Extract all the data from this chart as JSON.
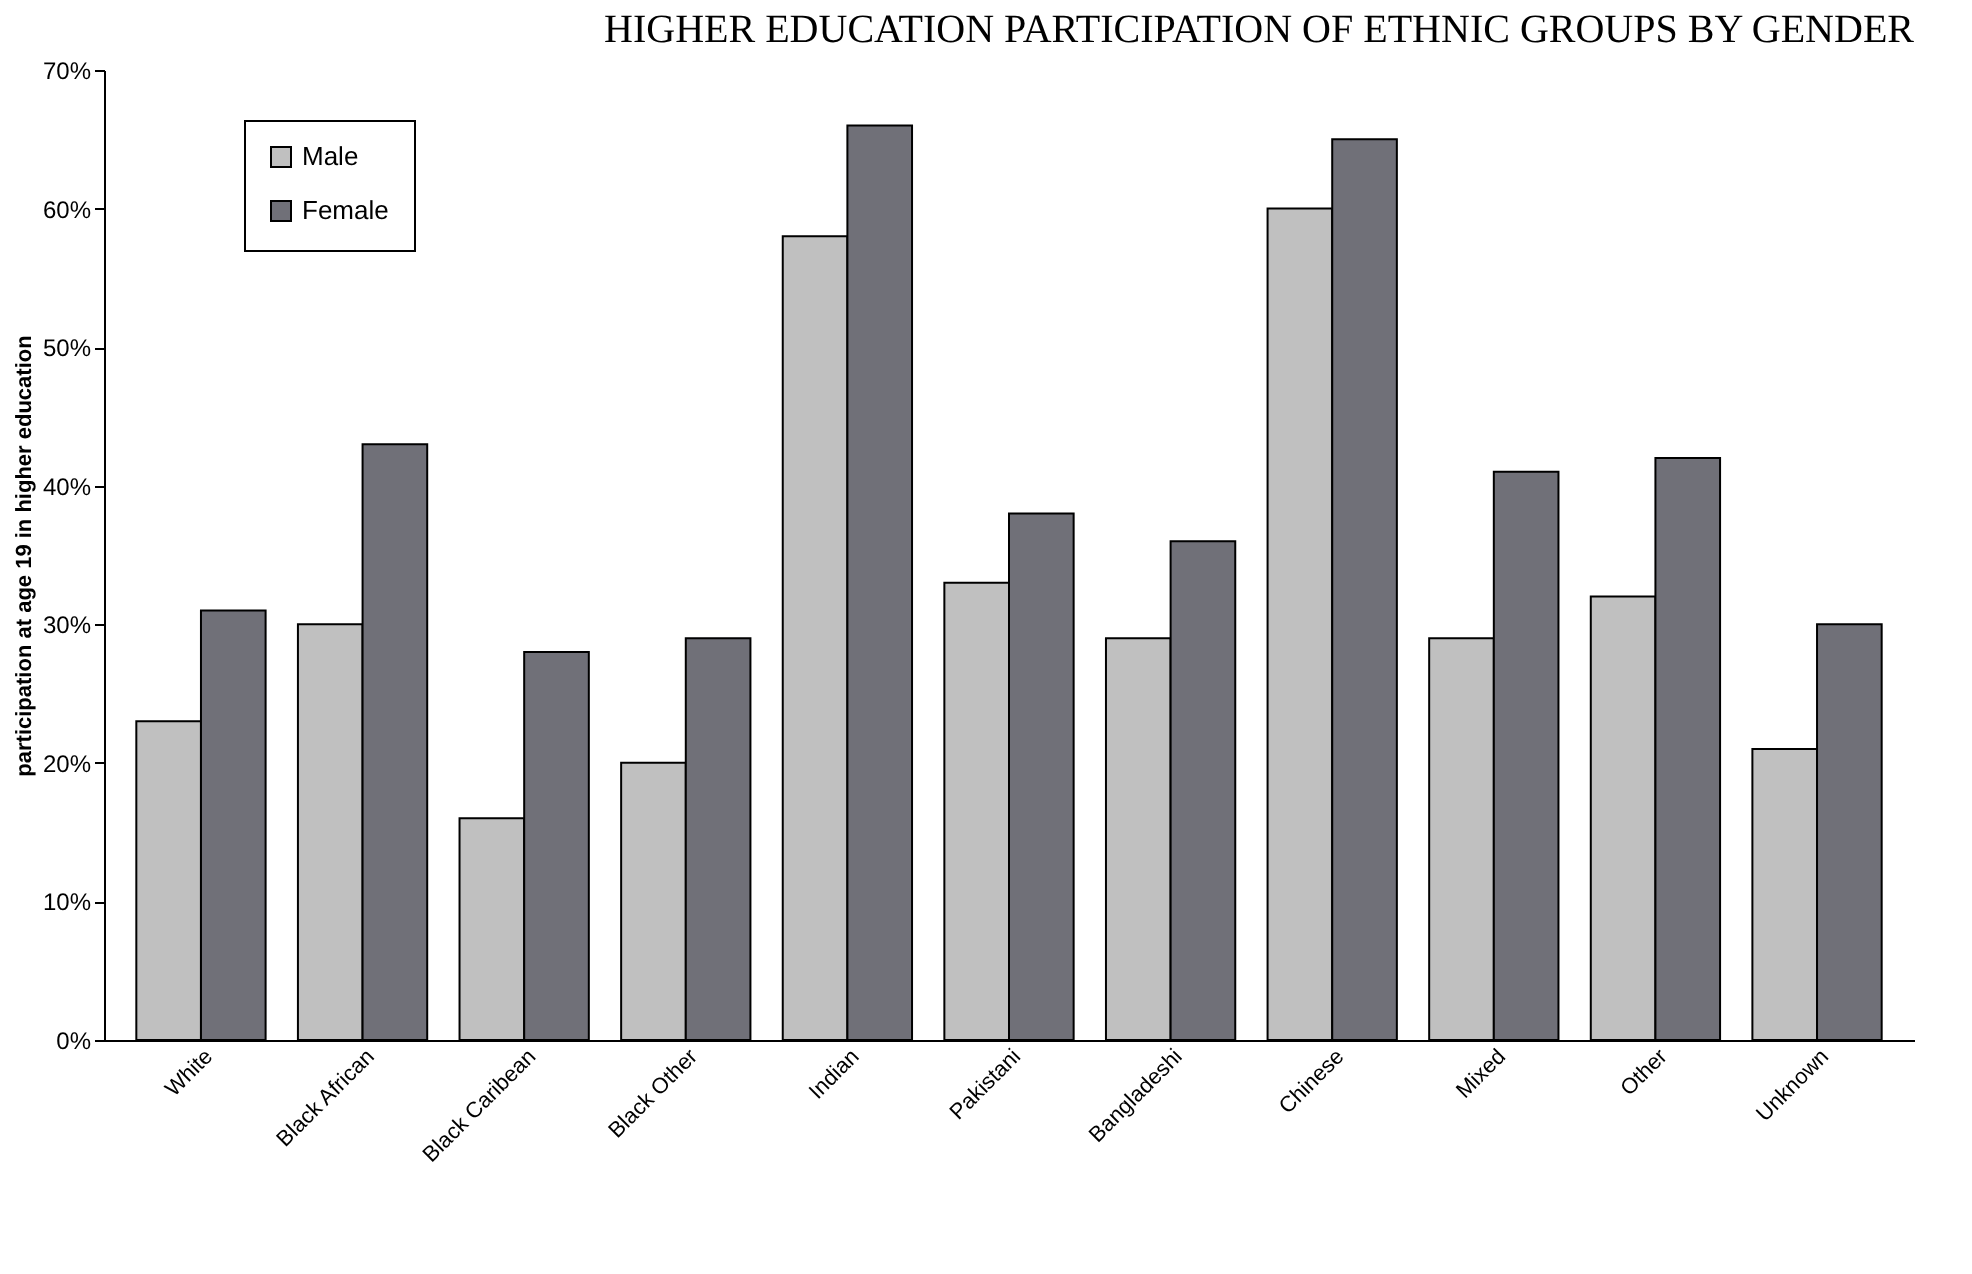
{
  "chart_data": {
    "type": "bar",
    "title": "HIGHER EDUCATION PARTICIPATION OF ETHNIC GROUPS BY GENDER",
    "ylabel": "participation at age 19 in higher education",
    "categories": [
      "White",
      "Black African",
      "Black Caribean",
      "Black Other",
      "Indian",
      "Pakistani",
      "Bangladeshi",
      "Chinese",
      "Mixed",
      "Other",
      "Unknown"
    ],
    "series": [
      {
        "name": "Male",
        "color": "#c0c0c0",
        "values": [
          23,
          30,
          16,
          20,
          58,
          33,
          29,
          60,
          29,
          32,
          21
        ]
      },
      {
        "name": "Female",
        "color": "#707078",
        "values": [
          31,
          43,
          28,
          29,
          66,
          38,
          36,
          65,
          41,
          42,
          30
        ]
      }
    ],
    "ylim": [
      0,
      70
    ],
    "yticks": [
      {
        "value": 0,
        "label": "0%"
      },
      {
        "value": 10,
        "label": "10%"
      },
      {
        "value": 20,
        "label": "20%"
      },
      {
        "value": 30,
        "label": "30%"
      },
      {
        "value": 40,
        "label": "40%"
      },
      {
        "value": 50,
        "label": "50%"
      },
      {
        "value": 60,
        "label": "60%"
      },
      {
        "value": 70,
        "label": "70%"
      }
    ],
    "grid": false,
    "legend": "top left"
  }
}
